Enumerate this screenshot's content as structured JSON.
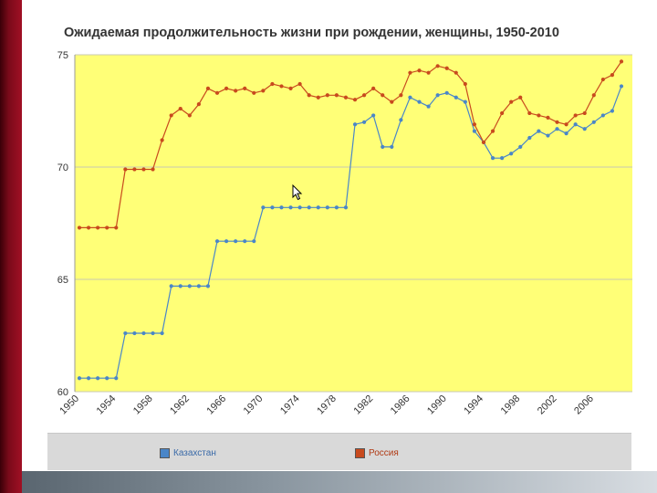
{
  "title": "Ожидаемая продолжительность жизни при рождении, женщины, 1950-2010",
  "chart_data": {
    "type": "line",
    "title": "Ожидаемая продолжительность жизни при рождении, женщины, 1950-2010",
    "x": [
      1950,
      1951,
      1952,
      1953,
      1954,
      1955,
      1956,
      1957,
      1958,
      1959,
      1960,
      1961,
      1962,
      1963,
      1964,
      1965,
      1966,
      1967,
      1968,
      1969,
      1970,
      1971,
      1972,
      1973,
      1974,
      1975,
      1976,
      1977,
      1978,
      1979,
      1980,
      1981,
      1982,
      1983,
      1984,
      1985,
      1986,
      1987,
      1988,
      1989,
      1990,
      1991,
      1992,
      1993,
      1994,
      1995,
      1996,
      1997,
      1998,
      1999,
      2000,
      2001,
      2002,
      2003,
      2004,
      2005,
      2006,
      2007,
      2008,
      2009
    ],
    "x_tick_labels": [
      "1950",
      "1954",
      "1958",
      "1962",
      "1966",
      "1970",
      "1974",
      "1978",
      "1982",
      "1986",
      "1990",
      "1994",
      "1998",
      "2002",
      "2006"
    ],
    "x_tick_values": [
      1950,
      1954,
      1958,
      1962,
      1966,
      1970,
      1974,
      1978,
      1982,
      1986,
      1990,
      1994,
      1998,
      2002,
      2006
    ],
    "ylim": [
      60,
      75
    ],
    "y_ticks": [
      60,
      65,
      70,
      75
    ],
    "series": [
      {
        "name": "Казахстан",
        "color": "#4a86c8",
        "values": [
          60.6,
          60.6,
          60.6,
          60.6,
          60.6,
          62.6,
          62.6,
          62.6,
          62.6,
          62.6,
          64.7,
          64.7,
          64.7,
          64.7,
          64.7,
          66.7,
          66.7,
          66.7,
          66.7,
          66.7,
          68.2,
          68.2,
          68.2,
          68.2,
          68.2,
          68.2,
          68.2,
          68.2,
          68.2,
          68.2,
          71.9,
          72.0,
          72.3,
          70.9,
          70.9,
          72.1,
          73.1,
          72.9,
          72.7,
          73.2,
          73.3,
          73.1,
          72.9,
          71.6,
          71.1,
          70.4,
          70.4,
          70.6,
          70.9,
          71.3,
          71.6,
          71.4,
          71.7,
          71.5,
          71.9,
          71.7,
          72.0,
          72.3,
          72.5,
          73.6
        ]
      },
      {
        "name": "Россия",
        "color": "#c84a1e",
        "values": [
          67.3,
          67.3,
          67.3,
          67.3,
          67.3,
          69.9,
          69.9,
          69.9,
          69.9,
          71.2,
          72.3,
          72.6,
          72.3,
          72.8,
          73.5,
          73.3,
          73.5,
          73.4,
          73.5,
          73.3,
          73.4,
          73.7,
          73.6,
          73.5,
          73.7,
          73.2,
          73.1,
          73.2,
          73.2,
          73.1,
          73.0,
          73.2,
          73.5,
          73.2,
          72.9,
          73.2,
          74.2,
          74.3,
          74.2,
          74.5,
          74.4,
          74.2,
          73.7,
          71.9,
          71.1,
          71.6,
          72.4,
          72.9,
          73.1,
          72.4,
          72.3,
          72.2,
          72.0,
          71.9,
          72.3,
          72.4,
          73.2,
          73.9,
          74.1,
          74.7
        ]
      }
    ],
    "grid": true,
    "legend": "bottom",
    "background": "#ffff77"
  }
}
